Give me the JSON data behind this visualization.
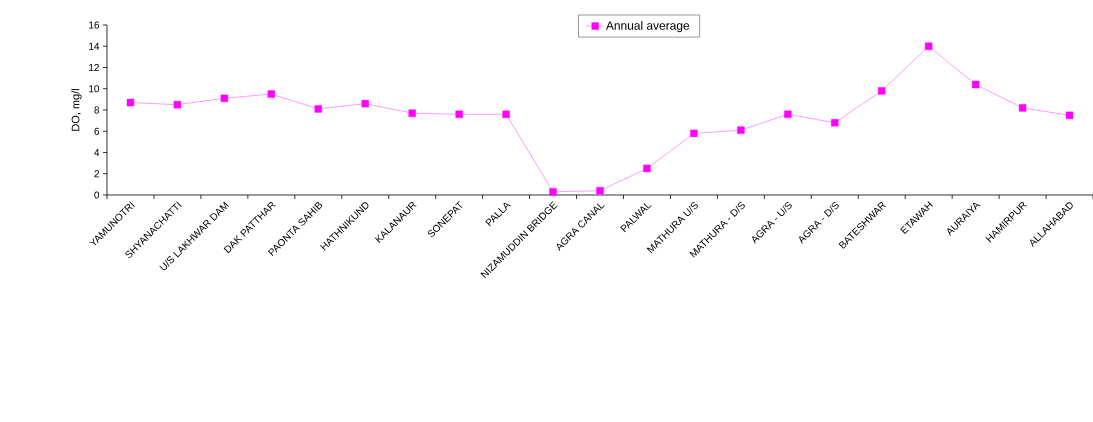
{
  "chart_data": {
    "type": "line",
    "ylabel": "DO, mg/l",
    "categories": [
      "YAMUNOTRI",
      "SHYANACHATTI",
      "U/S LAKHWAR DAM",
      "DAK PATTHAR",
      "PAONTA SAHIB",
      "HATHNIKUND",
      "KALANAUR",
      "SONEPAT",
      "PALLA",
      "NIZAMUDDIN BRIDGE",
      "AGRA CANAL",
      "PALWAL",
      "MATHURA U/S",
      "MATHURA - D/S",
      "AGRA - U/S",
      "AGRA - D/S",
      "BATESHWAR",
      "ETAWAH",
      "AURAIYA",
      "HAMIRPUR",
      "ALLAHABAD"
    ],
    "series": [
      {
        "name": "Annual average",
        "color": "#ff00ff",
        "values": [
          8.7,
          8.5,
          9.1,
          9.5,
          8.1,
          8.6,
          7.7,
          7.6,
          7.6,
          0.3,
          0.4,
          2.5,
          5.8,
          6.1,
          7.6,
          6.8,
          9.8,
          14.0,
          10.4,
          8.2,
          7.5
        ]
      }
    ],
    "ylim": [
      0,
      16
    ],
    "yticks": [
      0,
      2,
      4,
      6,
      8,
      10,
      12,
      14,
      16
    ],
    "legend": "top",
    "marker": "square",
    "line_style": "solid",
    "grid": false
  }
}
